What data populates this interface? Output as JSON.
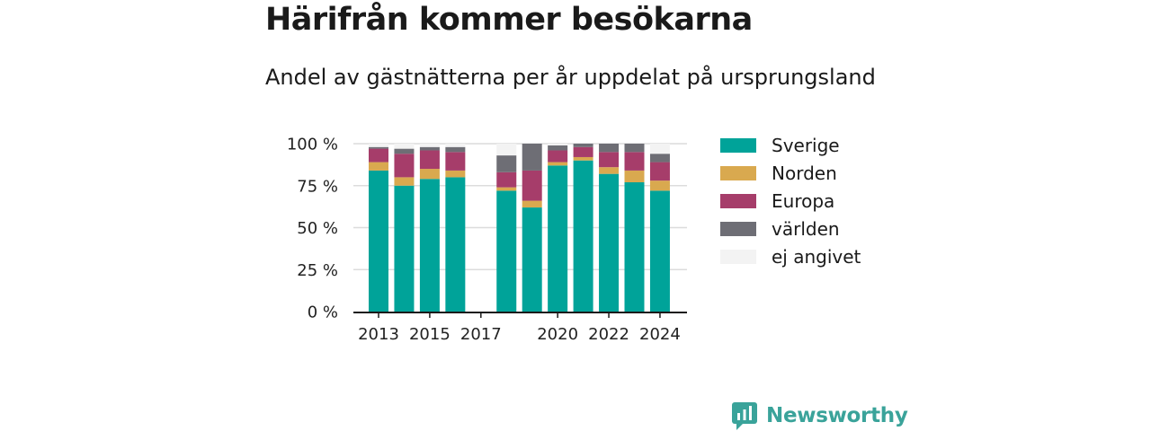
{
  "title": "Härifrån kommer besökarna",
  "subtitle": "Andel av gästnätterna per år uppdelat på ursprungsland",
  "brand": "Newsworthy",
  "colors": {
    "sverige": "#00a399",
    "norden": "#d9a94f",
    "europa": "#a63d6a",
    "varlden": "#6e6e75",
    "ej_angivet": "#f3f3f3"
  },
  "chart_data": {
    "type": "bar",
    "stacked": true,
    "title": "Härifrån kommer besökarna",
    "subtitle": "Andel av gästnätterna per år uppdelat på ursprungsland",
    "categories": [
      2013,
      2014,
      2015,
      2016,
      2017,
      2018,
      2019,
      2020,
      2021,
      2022,
      2023,
      2024
    ],
    "x_tick_labels": [
      "2013",
      "2015",
      "2017",
      "2020",
      "2022",
      "2024"
    ],
    "y_tick_labels": [
      "0 %",
      "25 %",
      "50 %",
      "75 %",
      "100 %"
    ],
    "ylim": [
      0,
      100
    ],
    "y_unit": "%",
    "grid": true,
    "legend_position": "right",
    "series": [
      {
        "name": "Sverige",
        "color": "#00a399",
        "values": [
          84,
          75,
          79,
          80,
          null,
          72,
          62,
          87,
          90,
          82,
          77,
          72
        ]
      },
      {
        "name": "Norden",
        "color": "#d9a94f",
        "values": [
          5,
          5,
          6,
          4,
          null,
          2,
          4,
          2,
          2,
          4,
          7,
          6
        ]
      },
      {
        "name": "Europa",
        "color": "#a63d6a",
        "values": [
          8,
          14,
          11,
          11,
          null,
          9,
          18,
          7,
          6,
          9,
          11,
          11
        ]
      },
      {
        "name": "världen",
        "color": "#6e6e75",
        "values": [
          1,
          3,
          2,
          3,
          null,
          10,
          16,
          3,
          2,
          5,
          5,
          5
        ]
      },
      {
        "name": "ej angivet",
        "color": "#f3f3f3",
        "values": [
          2,
          3,
          2,
          2,
          null,
          7,
          0,
          1,
          0,
          0,
          0,
          6
        ]
      }
    ]
  }
}
